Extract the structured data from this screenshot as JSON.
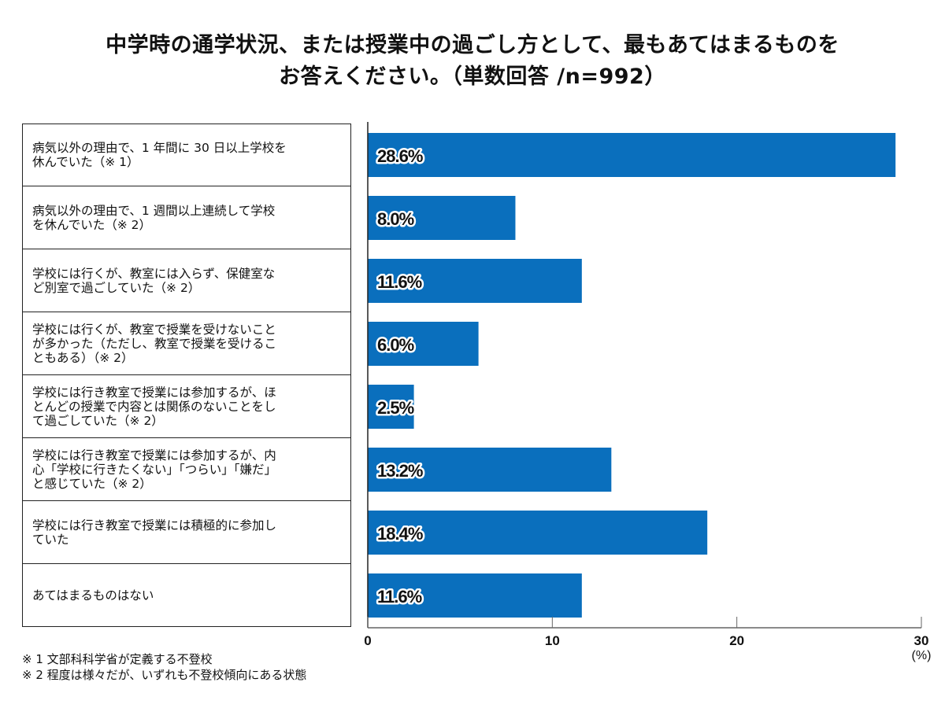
{
  "title": [
    "中学時の通学状況、または授業中の過ごし方として、最もあてはまるものを",
    "お答えください。（単数回答 /n=992）"
  ],
  "chart_data": {
    "type": "bar",
    "orientation": "horizontal",
    "categories": [
      "病気以外の理由で、1 年間に 30 日以上学校を\n休んでいた（※ 1）",
      "病気以外の理由で、1 週間以上連続して学校\nを休んでいた（※ 2）",
      "学校には行くが、教室には入らず、保健室な\nど別室で過ごしていた（※ 2）",
      "学校には行くが、教室で授業を受けないこと\nが多かった（ただし、教室で授業を受けるこ\nともある）（※ 2）",
      "学校には行き教室で授業には参加するが、ほ\nとんどの授業で内容とは関係のないことをし\nて過ごしていた（※ 2）",
      "学校には行き教室で授業には参加するが、内\n心「学校に行きたくない」「つらい」「嫌だ」\nと感じていた（※ 2）",
      "学校には行き教室で授業には積極的に参加し\nていた",
      "あてはまるものはない"
    ],
    "values": [
      28.6,
      8.0,
      11.6,
      6.0,
      2.5,
      13.2,
      18.4,
      11.6
    ],
    "data_labels": [
      "28.6%",
      "8.0%",
      "11.6%",
      "6.0%",
      "2.5%",
      "13.2%",
      "18.4%",
      "11.6%"
    ],
    "xlim": [
      0,
      30
    ],
    "xticks": [
      "0",
      "10",
      "20",
      "30"
    ],
    "xunit": "(%)",
    "grid": false,
    "bar_color": "#0a6fbd"
  },
  "footnotes": [
    "※ 1  文部科科学省が定義する不登校",
    "※ 2  程度は様々だが、いずれも不登校傾向にある状態"
  ]
}
